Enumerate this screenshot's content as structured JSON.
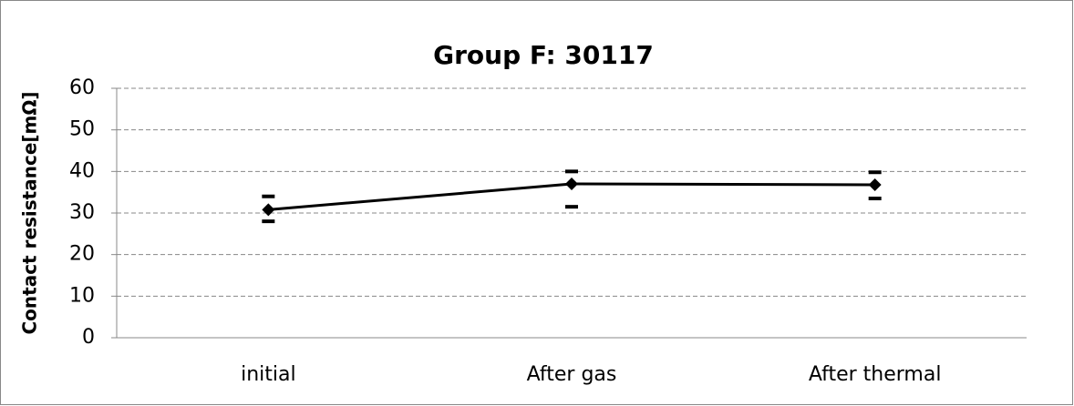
{
  "chart_data": {
    "type": "line",
    "title": "Group F: 30117",
    "y_label": "Contact resistance[mΩ]",
    "categories": [
      "initial",
      "After gas",
      "After thermal"
    ],
    "values": [
      30.8,
      37,
      36.8
    ],
    "max": [
      34,
      40,
      39.8
    ],
    "min": [
      28,
      31.5,
      33.5
    ],
    "color": "#000000",
    "ylim": [
      0,
      60
    ],
    "yticks": [
      0,
      10,
      20,
      30,
      40,
      50,
      60
    ],
    "grid": true
  }
}
